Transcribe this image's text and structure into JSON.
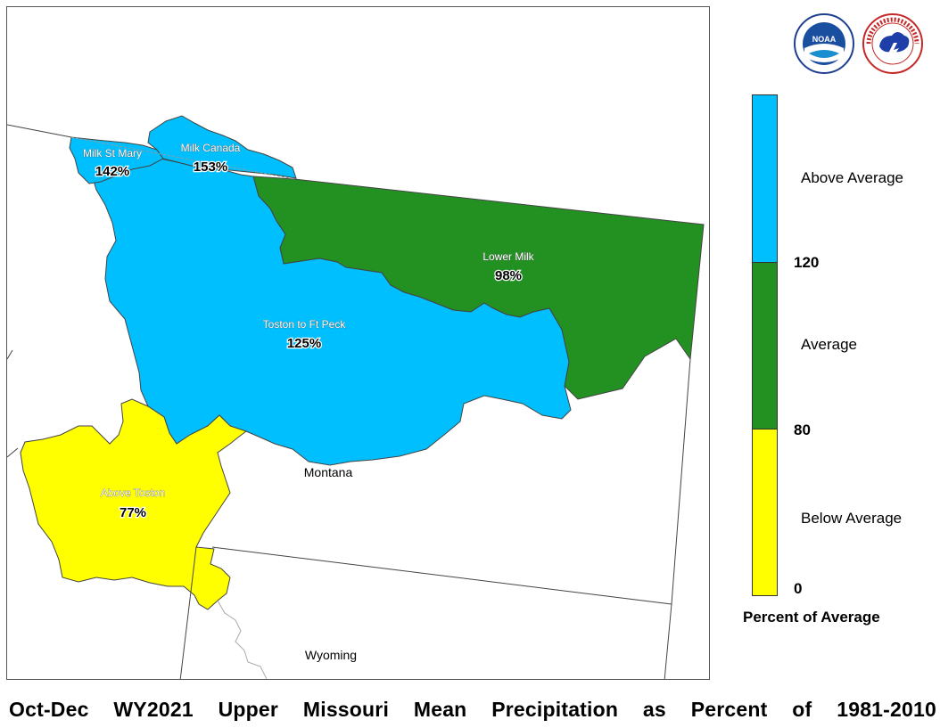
{
  "caption": "Oct-Dec WY2021 Upper Missouri Mean Precipitation as Percent of 1981-2010",
  "colors": {
    "above": "#00bfff",
    "average": "#229122",
    "below": "#ffff00"
  },
  "basins": [
    {
      "name": "Milk St Mary",
      "percent": "142%",
      "category": "above"
    },
    {
      "name": "Milk Canada",
      "percent": "153%",
      "category": "above"
    },
    {
      "name": "Lower Milk",
      "percent": "98%",
      "category": "average"
    },
    {
      "name": "Toston to Ft Peck",
      "percent": "125%",
      "category": "above"
    },
    {
      "name": "Above Toston",
      "percent": "77%",
      "category": "below"
    }
  ],
  "states": {
    "montana": "Montana",
    "wyoming": "Wyoming"
  },
  "legend": {
    "title": "Percent of Average",
    "categories": [
      "Above Average",
      "Average",
      "Below Average"
    ],
    "ticks": [
      "120",
      "80",
      "0"
    ]
  },
  "logos": {
    "noaa": "NOAA",
    "nws": "NATIONAL WEATHER SERVICE"
  }
}
